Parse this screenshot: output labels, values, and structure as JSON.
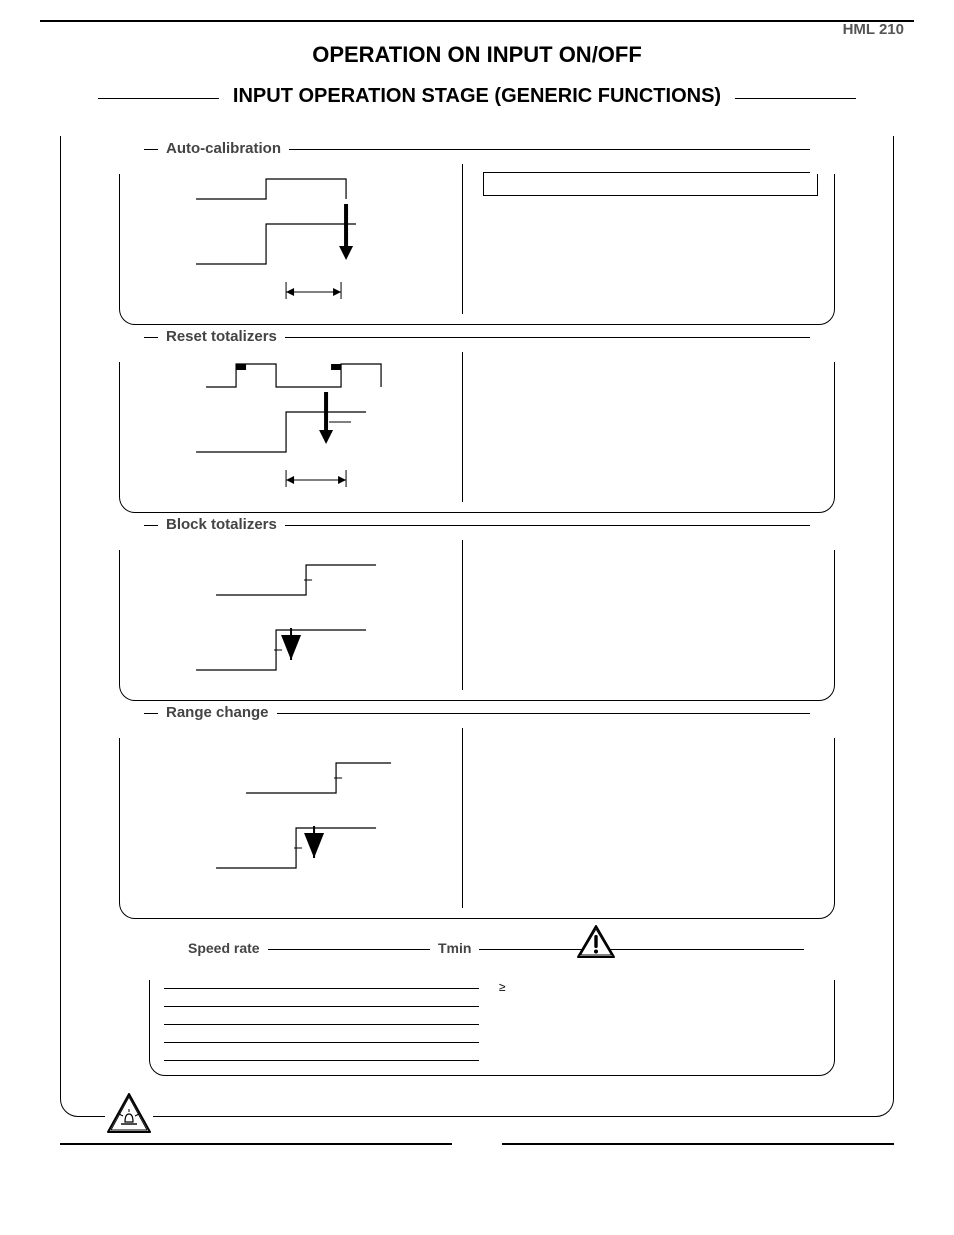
{
  "header": {
    "code": "HML 210"
  },
  "title": "OPERATION ON INPUT  ON/OFF",
  "outer_title": "INPUT OPERATION STAGE (GENERIC FUNCTIONS)",
  "sections": [
    {
      "title": "Auto-calibration"
    },
    {
      "title": "Reset totalizers"
    },
    {
      "title": "Block totalizers"
    },
    {
      "title": "Range change"
    }
  ],
  "speed": {
    "label_left": "Speed rate",
    "label_right": "Tmin",
    "note_symbol": "≥",
    "rows": [
      {
        "rate": "",
        "tmin": ""
      },
      {
        "rate": "",
        "tmin": ""
      },
      {
        "rate": "",
        "tmin": ""
      },
      {
        "rate": "",
        "tmin": ""
      },
      {
        "rate": "",
        "tmin": ""
      }
    ]
  },
  "colors": {
    "stroke": "#000000",
    "tri_stroke": "#000000",
    "tri_fill": "#ffffff"
  }
}
